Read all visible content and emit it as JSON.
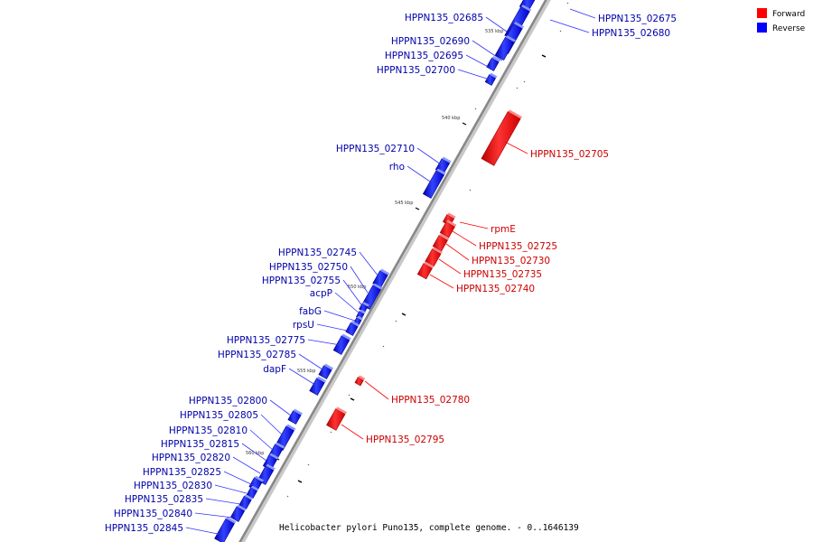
{
  "colors": {
    "forward": "#ff0000",
    "reverse": "#0000ff",
    "forward_label": "#cc0000",
    "reverse_label": "#0000aa",
    "backbone": "#888888"
  },
  "legend": [
    {
      "label": "Forward",
      "color": "#ff0000"
    },
    {
      "label": "Reverse",
      "color": "#0000ff"
    }
  ],
  "caption": "Helicobacter pylori Puno135, complete genome. - 0..1646139",
  "ticks": [
    "535 kbp",
    "540 kbp",
    "545 kbp",
    "550 kbp",
    "555 kbp",
    "560 kbp"
  ],
  "genes": [
    {
      "name": "HPPN135_02675",
      "strand": "reverse"
    },
    {
      "name": "HPPN135_02680",
      "strand": "reverse"
    },
    {
      "name": "HPPN135_02685",
      "strand": "reverse"
    },
    {
      "name": "HPPN135_02690",
      "strand": "reverse"
    },
    {
      "name": "HPPN135_02695",
      "strand": "reverse"
    },
    {
      "name": "HPPN135_02700",
      "strand": "reverse"
    },
    {
      "name": "HPPN135_02705",
      "strand": "forward"
    },
    {
      "name": "HPPN135_02710",
      "strand": "reverse"
    },
    {
      "name": "rho",
      "strand": "reverse"
    },
    {
      "name": "rpmE",
      "strand": "forward"
    },
    {
      "name": "HPPN135_02725",
      "strand": "forward"
    },
    {
      "name": "HPPN135_02730",
      "strand": "forward"
    },
    {
      "name": "HPPN135_02735",
      "strand": "forward"
    },
    {
      "name": "HPPN135_02740",
      "strand": "forward"
    },
    {
      "name": "HPPN135_02745",
      "strand": "reverse"
    },
    {
      "name": "HPPN135_02750",
      "strand": "reverse"
    },
    {
      "name": "HPPN135_02755",
      "strand": "reverse"
    },
    {
      "name": "acpP",
      "strand": "reverse"
    },
    {
      "name": "fabG",
      "strand": "reverse"
    },
    {
      "name": "rpsU",
      "strand": "reverse"
    },
    {
      "name": "HPPN135_02775",
      "strand": "reverse"
    },
    {
      "name": "HPPN135_02785",
      "strand": "reverse"
    },
    {
      "name": "dapF",
      "strand": "reverse"
    },
    {
      "name": "HPPN135_02780",
      "strand": "forward"
    },
    {
      "name": "HPPN135_02795",
      "strand": "forward"
    },
    {
      "name": "HPPN135_02800",
      "strand": "reverse"
    },
    {
      "name": "HPPN135_02805",
      "strand": "reverse"
    },
    {
      "name": "HPPN135_02810",
      "strand": "reverse"
    },
    {
      "name": "HPPN135_02815",
      "strand": "reverse"
    },
    {
      "name": "HPPN135_02820",
      "strand": "reverse"
    },
    {
      "name": "HPPN135_02825",
      "strand": "reverse"
    },
    {
      "name": "HPPN135_02830",
      "strand": "reverse"
    },
    {
      "name": "HPPN135_02835",
      "strand": "reverse"
    },
    {
      "name": "HPPN135_02840",
      "strand": "reverse"
    },
    {
      "name": "HPPN135_02845",
      "strand": "reverse"
    }
  ]
}
